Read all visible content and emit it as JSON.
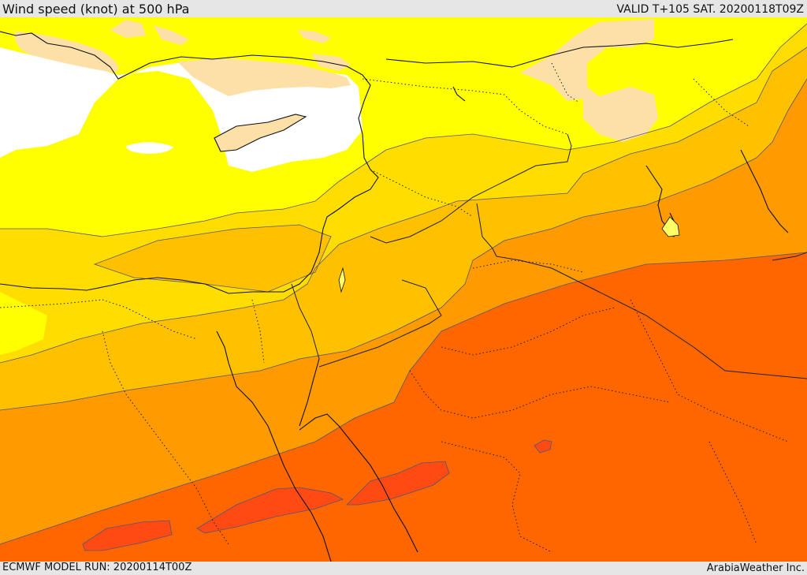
{
  "header": {
    "title": "Wind speed (knot) at 500 hPa",
    "valid": "VALID T+105 SAT. 20200118T09Z"
  },
  "footer": {
    "model_run": "ECMWF MODEL RUN: 20200114T00Z",
    "credit": "ArabiaWeather Inc."
  },
  "map": {
    "field": "wind speed",
    "level": "500 hPa",
    "colors": {
      "calm": "#ffffff",
      "light": "#fde0a8",
      "band1": "#ffff00",
      "band2": "#ffdd00",
      "band3": "#ffc000",
      "band4": "#ff9a00",
      "band5": "#ff6600",
      "band6": "#ff4a14",
      "coastline": "#111111",
      "border": "#222222",
      "contour": "#555577"
    }
  }
}
